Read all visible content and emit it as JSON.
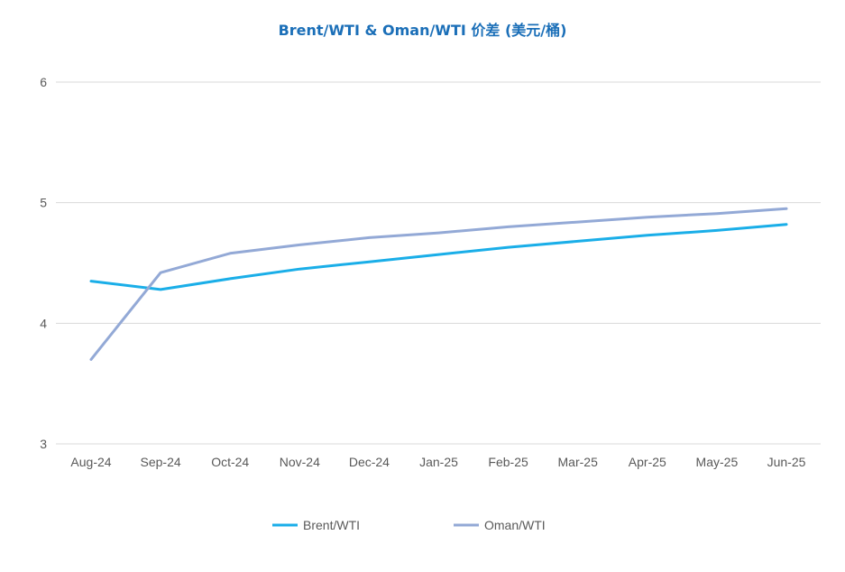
{
  "chart_data": {
    "type": "line",
    "title": "Brent/WTI & Oman/WTI 价差 (美元/桶)",
    "xlabel": "",
    "ylabel": "",
    "ylim": [
      3,
      6
    ],
    "yticks": [
      3,
      4,
      5,
      6
    ],
    "grid": true,
    "legend_position": "bottom",
    "categories": [
      "Aug-24",
      "Sep-24",
      "Oct-24",
      "Nov-24",
      "Dec-24",
      "Jan-25",
      "Feb-25",
      "Mar-25",
      "Apr-25",
      "May-25",
      "Jun-25"
    ],
    "series": [
      {
        "name": "Brent/WTI",
        "color": "#1AAEE8",
        "values": [
          4.35,
          4.28,
          4.37,
          4.45,
          4.51,
          4.57,
          4.63,
          4.68,
          4.73,
          4.77,
          4.82
        ]
      },
      {
        "name": "Oman/WTI",
        "color": "#93A9D6",
        "values": [
          3.7,
          4.42,
          4.58,
          4.65,
          4.71,
          4.75,
          4.8,
          4.84,
          4.88,
          4.91,
          4.95
        ]
      }
    ],
    "colors": {
      "title": "#1B6FB8",
      "grid": "#D9D9D9",
      "tick_text": "#595959"
    }
  }
}
